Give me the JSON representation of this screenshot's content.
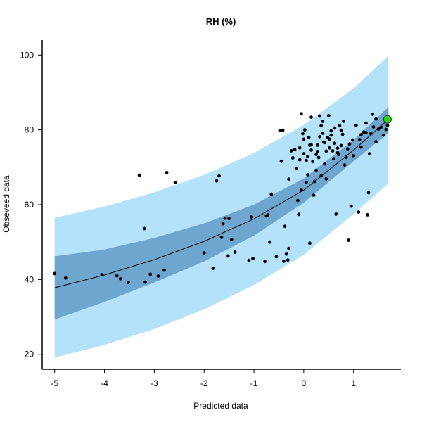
{
  "chart_data": {
    "type": "scatter",
    "title": "RH (%)",
    "xlabel": "Predicted data",
    "ylabel": "Obseveed data",
    "xlim": [
      -5.25,
      1.95
    ],
    "ylim": [
      16,
      104
    ],
    "x_ticks": [
      -5,
      -4,
      -3,
      -2,
      -1,
      0,
      1
    ],
    "y_ticks": [
      20,
      40,
      60,
      80,
      100
    ],
    "grid": false,
    "legend": "none",
    "colors": {
      "prediction_band": "#b3e2fa",
      "confidence_band": "#6fa6cf",
      "fit_line": "#000000",
      "points": "#000000",
      "highlight_point": "#22dd11",
      "highlight_stroke": "#333333"
    },
    "fit_curve": {
      "x": [
        -5,
        -4,
        -3,
        -2,
        -1,
        0,
        1,
        1.7
      ],
      "y": [
        37.8,
        41.2,
        45.3,
        50.2,
        56.2,
        63.9,
        74.6,
        82.8
      ]
    },
    "confidence_band": {
      "x": [
        -5,
        -4,
        -3,
        -2,
        -1,
        0,
        1,
        1.7
      ],
      "upper": [
        46.2,
        48.0,
        51.1,
        55.0,
        60.0,
        67.0,
        77.3,
        86.1
      ],
      "lower": [
        29.3,
        34.0,
        39.2,
        44.8,
        51.7,
        60.5,
        71.6,
        79.2
      ]
    },
    "prediction_band": {
      "x": [
        -5,
        -4,
        -3,
        -2,
        -1,
        0,
        1,
        1.7
      ],
      "upper": [
        56.5,
        59.5,
        63.3,
        68.0,
        73.8,
        81.3,
        91.1,
        99.8
      ],
      "lower": [
        19.1,
        22.5,
        26.8,
        32.0,
        38.5,
        46.6,
        57.5,
        65.7
      ]
    },
    "points": [
      [
        -5.0,
        41.6
      ],
      [
        -4.78,
        40.4
      ],
      [
        -4.05,
        41.3
      ],
      [
        -3.75,
        41.0
      ],
      [
        -3.68,
        40.2
      ],
      [
        -3.52,
        39.2
      ],
      [
        -3.3,
        67.9
      ],
      [
        -3.2,
        53.6
      ],
      [
        -3.18,
        39.3
      ],
      [
        -3.08,
        41.4
      ],
      [
        -2.92,
        40.9
      ],
      [
        -2.8,
        42.5
      ],
      [
        -2.75,
        68.6
      ],
      [
        -2.58,
        65.9
      ],
      [
        -2.0,
        47.1
      ],
      [
        -1.82,
        43.0
      ],
      [
        -1.75,
        66.4
      ],
      [
        -1.7,
        67.7
      ],
      [
        -1.65,
        51.3
      ],
      [
        -1.62,
        54.9
      ],
      [
        -1.58,
        56.4
      ],
      [
        -1.5,
        56.3
      ],
      [
        -1.52,
        46.3
      ],
      [
        -1.45,
        50.7
      ],
      [
        -1.38,
        47.3
      ],
      [
        -1.1,
        45.1
      ],
      [
        -1.02,
        45.6
      ],
      [
        -1.05,
        56.7
      ],
      [
        -0.78,
        44.8
      ],
      [
        -0.75,
        57.0
      ],
      [
        -0.72,
        57.3
      ],
      [
        -0.68,
        50.0
      ],
      [
        -0.65,
        62.8
      ],
      [
        -0.55,
        46.1
      ],
      [
        -0.48,
        79.8
      ],
      [
        -0.45,
        71.6
      ],
      [
        -0.42,
        79.9
      ],
      [
        -0.4,
        44.9
      ],
      [
        -0.38,
        54.2
      ],
      [
        -0.35,
        46.8
      ],
      [
        -0.32,
        45.2
      ],
      [
        -0.3,
        48.3
      ],
      [
        -0.25,
        74.4
      ],
      [
        -0.22,
        72.5
      ],
      [
        -0.18,
        74.7
      ],
      [
        -0.15,
        69.7
      ],
      [
        -0.12,
        61.1
      ],
      [
        -0.1,
        57.4
      ],
      [
        -0.08,
        72.0
      ],
      [
        -0.05,
        84.3
      ],
      [
        -0.05,
        63.9
      ],
      [
        -0.02,
        79.0
      ],
      [
        0.0,
        77.5
      ],
      [
        0.02,
        80.0
      ],
      [
        0.05,
        66.0
      ],
      [
        0.08,
        68.0
      ],
      [
        0.1,
        78.0
      ],
      [
        0.12,
        49.7
      ],
      [
        0.15,
        74.6
      ],
      [
        0.18,
        71.5
      ],
      [
        0.2,
        62.5
      ],
      [
        0.22,
        66.2
      ],
      [
        0.25,
        73.4
      ],
      [
        0.28,
        75.9
      ],
      [
        0.3,
        72.6
      ],
      [
        0.32,
        83.7
      ],
      [
        0.35,
        81.1
      ],
      [
        0.38,
        79.1
      ],
      [
        0.4,
        76.7
      ],
      [
        0.42,
        70.9
      ],
      [
        0.45,
        74.3
      ],
      [
        0.48,
        77.9
      ],
      [
        0.5,
        83.8
      ],
      [
        0.52,
        75.2
      ],
      [
        0.55,
        79.7
      ],
      [
        0.58,
        74.4
      ],
      [
        0.6,
        72.3
      ],
      [
        0.62,
        76.4
      ],
      [
        0.65,
        57.5
      ],
      [
        0.68,
        75.1
      ],
      [
        0.7,
        73.4
      ],
      [
        0.72,
        81.1
      ],
      [
        0.75,
        75.8
      ],
      [
        0.78,
        78.8
      ],
      [
        0.8,
        82.3
      ],
      [
        0.82,
        70.6
      ],
      [
        0.85,
        72.7
      ],
      [
        0.88,
        74.9
      ],
      [
        0.9,
        50.5
      ],
      [
        0.92,
        76.2
      ],
      [
        0.95,
        59.6
      ],
      [
        0.98,
        77.3
      ],
      [
        1.0,
        73.1
      ],
      [
        1.05,
        81.2
      ],
      [
        1.1,
        58.0
      ],
      [
        1.12,
        77.4
      ],
      [
        1.15,
        75.4
      ],
      [
        1.2,
        79.4
      ],
      [
        1.25,
        81.8
      ],
      [
        1.28,
        57.3
      ],
      [
        1.3,
        63.2
      ],
      [
        1.32,
        73.6
      ],
      [
        1.35,
        79.0
      ],
      [
        1.4,
        80.8
      ],
      [
        1.45,
        76.8
      ],
      [
        1.5,
        80.2
      ],
      [
        1.55,
        80.7
      ],
      [
        1.6,
        78.6
      ],
      [
        1.65,
        80.1
      ],
      [
        1.68,
        81.2
      ],
      [
        -0.3,
        66.8
      ],
      [
        0.05,
        71.8
      ],
      [
        0.15,
        76.0
      ],
      [
        0.25,
        69.2
      ],
      [
        0.35,
        67.7
      ],
      [
        0.45,
        66.9
      ],
      [
        0.55,
        78.6
      ],
      [
        0.38,
        82.3
      ],
      [
        0.15,
        83.4
      ],
      [
        0.0,
        73.6
      ],
      [
        -0.08,
        75.2
      ],
      [
        0.62,
        80.5
      ],
      [
        0.75,
        79.9
      ],
      [
        1.15,
        78.7
      ],
      [
        1.38,
        84.2
      ],
      [
        1.45,
        82.9
      ],
      [
        1.25,
        79.3
      ],
      [
        0.28,
        74.2
      ],
      [
        0.42,
        76.6
      ],
      [
        0.52,
        77.5
      ],
      [
        0.12,
        75.9
      ],
      [
        0.32,
        78.2
      ],
      [
        0.08,
        72.9
      ],
      [
        0.68,
        73.9
      ]
    ],
    "highlight_point": [
      1.68,
      82.8
    ]
  }
}
